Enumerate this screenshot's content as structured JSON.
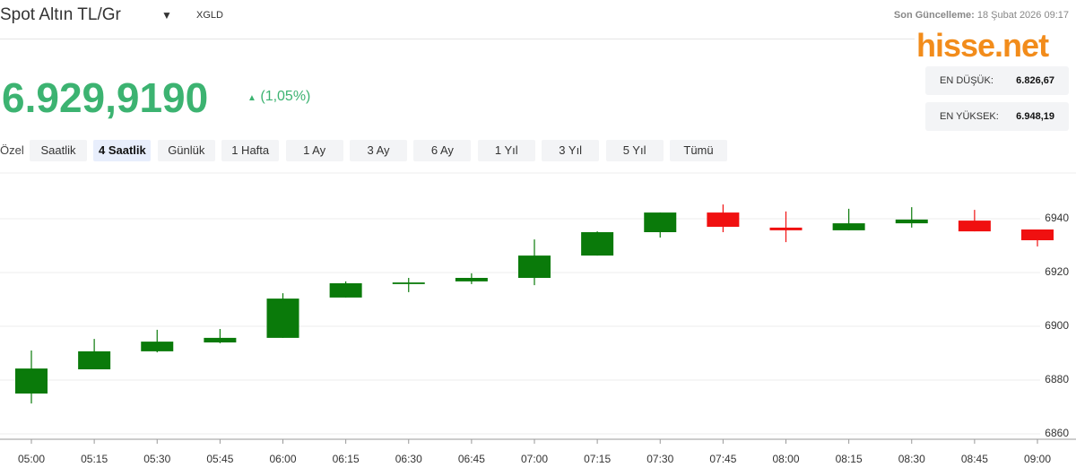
{
  "header": {
    "title": "Spot Altın TL/Gr",
    "symbol": "XGLD",
    "update_label": "Son Güncelleme:",
    "update_time": "18 Şubat 2026 09:17",
    "logo": "hisse.net"
  },
  "price": {
    "value": "6.929,9190",
    "change": "(1,05%)"
  },
  "stats": [
    {
      "label": "EN DÜŞÜK:",
      "value": "6.826,67"
    },
    {
      "label": "EN YÜKSEK:",
      "value": "6.948,19"
    }
  ],
  "range_label": "Özel",
  "tabs": [
    "Saatlik",
    "4 Saatlik",
    "Günlük",
    "1 Hafta",
    "1 Ay",
    "3 Ay",
    "6 Ay",
    "1 Yıl",
    "3 Yıl",
    "5 Yıl",
    "Tümü"
  ],
  "active_tab": 1,
  "chart_data": {
    "type": "candlestick",
    "categories": [
      "05:00",
      "05:15",
      "05:30",
      "05:45",
      "06:00",
      "06:15",
      "06:30",
      "06:45",
      "07:00",
      "07:15",
      "07:30",
      "07:45",
      "08:00",
      "08:15",
      "08:30",
      "08:45",
      "09:00"
    ],
    "open": [
      6875,
      6884,
      6890.7,
      6894,
      6895.7,
      6910.7,
      6915.7,
      6916.7,
      6918,
      6926.3,
      6935,
      6942.3,
      6936.7,
      6935.7,
      6938.3,
      6939.3,
      6936
    ],
    "high": [
      6891,
      6895.3,
      6898.7,
      6899,
      6912.3,
      6916.7,
      6918,
      6919.7,
      6932.3,
      6935.3,
      6942.3,
      6945.3,
      6942.7,
      6943.7,
      6944.3,
      6943.3,
      6936
    ],
    "low": [
      6871.3,
      6884,
      6890.3,
      6893.7,
      6895.7,
      6910.7,
      6912.7,
      6915.7,
      6915.3,
      6926.3,
      6933,
      6935,
      6931.3,
      6935.7,
      6936.7,
      6935.3,
      6929.7
    ],
    "close": [
      6884.3,
      6890.7,
      6894.3,
      6895.7,
      6910.3,
      6916,
      6916.3,
      6918,
      6926.3,
      6935,
      6942.3,
      6937,
      6935.7,
      6938.3,
      6939.7,
      6935.3,
      6932
    ],
    "up_color": "#0a7a0a",
    "down_color": "#f01010",
    "ylim": [
      6858,
      6957
    ],
    "yticks": [
      6860,
      6880,
      6900,
      6920,
      6940
    ],
    "grid": true
  }
}
